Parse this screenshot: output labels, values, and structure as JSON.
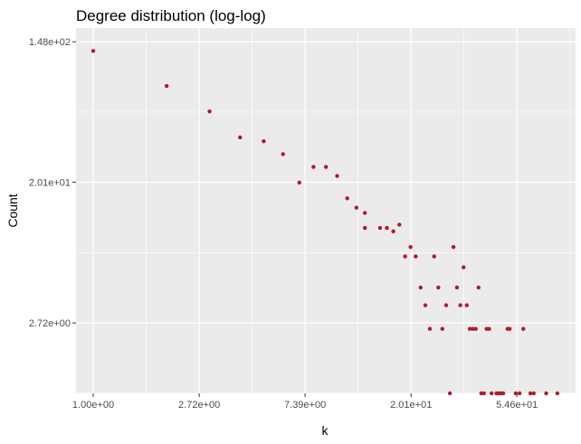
{
  "chart_data": {
    "type": "scatter",
    "title": "Degree distribution (log-log)",
    "xlabel": "k",
    "ylabel": "Count",
    "x_scale": "log",
    "y_scale": "log",
    "xlim": [
      0.85,
      95
    ],
    "ylim": [
      1.0,
      180
    ],
    "x_ticks": [
      {
        "value": 1.0,
        "label": "1.00e+00"
      },
      {
        "value": 2.72,
        "label": "2.72e+00"
      },
      {
        "value": 7.39,
        "label": "7.39e+00"
      },
      {
        "value": 20.1,
        "label": "2.01e+01"
      },
      {
        "value": 54.6,
        "label": "5.46e+01"
      }
    ],
    "y_ticks": [
      {
        "value": 2.72,
        "label": "2.72e+00"
      },
      {
        "value": 20.1,
        "label": "2.01e+01"
      },
      {
        "value": 148,
        "label": "1.48e+02"
      }
    ],
    "grid": true,
    "background": "#ebebeb",
    "grid_color": "#ffffff",
    "point_color": "#b2182b",
    "series": [
      {
        "points": [
          [
            1,
            130
          ],
          [
            2,
            79
          ],
          [
            3,
            55
          ],
          [
            4,
            38
          ],
          [
            5,
            36
          ],
          [
            6,
            30
          ],
          [
            7,
            20
          ],
          [
            8,
            25
          ],
          [
            9,
            25
          ],
          [
            10,
            22
          ],
          [
            11,
            16
          ],
          [
            12,
            14
          ],
          [
            13,
            10.5
          ],
          [
            13,
            13
          ],
          [
            15,
            10.5
          ],
          [
            16,
            10.5
          ],
          [
            17,
            10
          ],
          [
            18,
            11
          ],
          [
            19,
            7
          ],
          [
            20,
            8
          ],
          [
            21,
            7
          ],
          [
            22,
            4.5
          ],
          [
            23,
            3.5
          ],
          [
            24,
            2.5
          ],
          [
            25,
            7
          ],
          [
            26,
            4.5
          ],
          [
            27,
            2.5
          ],
          [
            28,
            3.5
          ],
          [
            29,
            1
          ],
          [
            30,
            8
          ],
          [
            31,
            4.5
          ],
          [
            32,
            3.5
          ],
          [
            33,
            6
          ],
          [
            34,
            3.5
          ],
          [
            35,
            2.5
          ],
          [
            36,
            2.5
          ],
          [
            37,
            2.5
          ],
          [
            38,
            4.5
          ],
          [
            39,
            1
          ],
          [
            40,
            1
          ],
          [
            41,
            2.5
          ],
          [
            42,
            2.5
          ],
          [
            43,
            1
          ],
          [
            45,
            1
          ],
          [
            46,
            1
          ],
          [
            47,
            1
          ],
          [
            48,
            1
          ],
          [
            50,
            2.5
          ],
          [
            51,
            2.5
          ],
          [
            54,
            1
          ],
          [
            56,
            1
          ],
          [
            58,
            2.5
          ],
          [
            62,
            1
          ],
          [
            64,
            1
          ],
          [
            72,
            1
          ],
          [
            80,
            1
          ]
        ]
      }
    ]
  }
}
